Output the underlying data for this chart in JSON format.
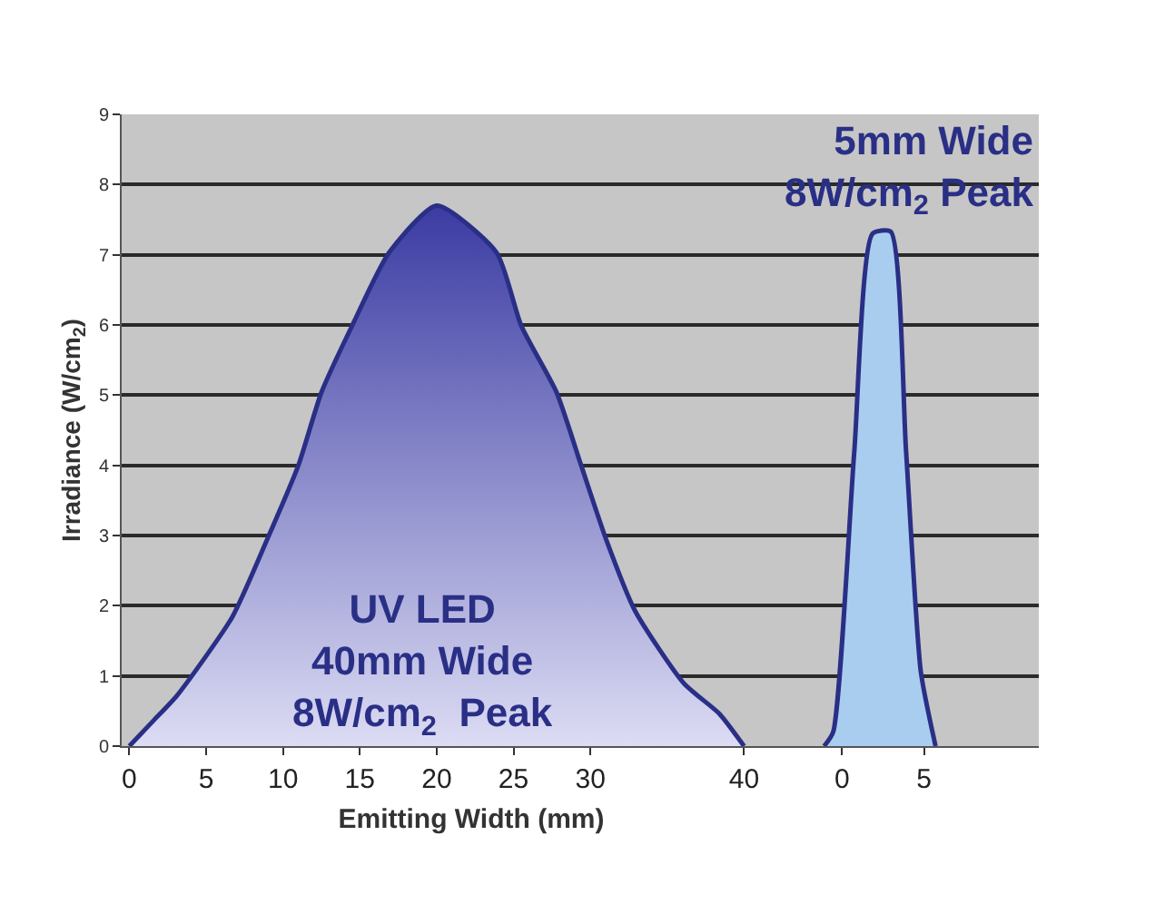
{
  "chart_data": [
    {
      "type": "area",
      "ylabel": "Irradiance (W/cm$_{2}$)",
      "xlabel": "Emitting Width (mm)",
      "x": [
        0,
        1.6,
        3.1,
        6.7,
        9.0,
        11,
        12.5,
        14.5,
        16.9,
        20,
        23.9,
        25.5,
        27.8,
        29.4,
        31,
        32.9,
        36.1,
        38.4,
        40
      ],
      "series": [
        {
          "color": "#3b3ba3",
          "values": [
            0,
            0.37,
            0.72,
            1.84,
            2.96,
            4.0,
            5.04,
            5.99,
            7.03,
            7.7,
            7.03,
            5.99,
            5.04,
            4.0,
            2.96,
            1.93,
            0.89,
            0.46,
            0
          ]
        }
      ],
      "xlim": [
        -0.5,
        45
      ],
      "xticks": [
        0,
        5,
        10,
        15,
        20,
        25,
        30,
        40
      ],
      "ylim": [
        0,
        9
      ],
      "yticks": [
        0,
        1,
        2,
        3,
        4,
        5,
        6,
        7,
        8,
        9
      ],
      "grid": "y",
      "annotations": [
        "UV LED\n40mm Wide\n8W/cm$_{2}$  Peak"
      ]
    },
    {
      "type": "area",
      "x": [
        -1.1,
        -0.55,
        0.74,
        1.85,
        2.96,
        3.9,
        4.8,
        5.7
      ],
      "series": [
        {
          "color": "#a9cdef",
          "values": [
            0,
            0.2,
            4.2,
            7.3,
            7.33,
            4.2,
            1.06,
            0
          ]
        }
      ],
      "xlim": [
        -1.3,
        12
      ],
      "xticks": [
        0,
        5
      ],
      "ylim": [
        0,
        9
      ],
      "yticks": [
        0,
        1,
        2,
        3,
        4,
        5,
        6,
        7,
        8,
        9
      ],
      "grid": "y",
      "tick_labels": "x",
      "annotations": [
        "5mm Wide\n8W/cm$_{2}$ Peak"
      ]
    }
  ]
}
